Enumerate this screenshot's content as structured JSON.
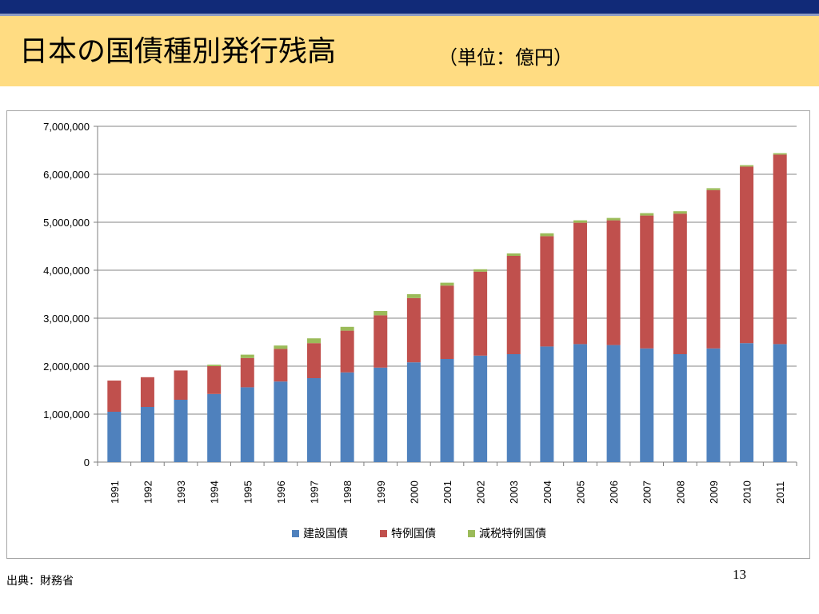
{
  "slide": {
    "title": "日本の国債種別発行残高",
    "unit_note": "（単位：億円）",
    "source": "出典：財務省",
    "page_number": "13",
    "colors": {
      "top_bar": "#112a78",
      "title_band": "#ffdc82"
    }
  },
  "chart_data": {
    "type": "bar",
    "stacked": true,
    "title": "",
    "xlabel": "",
    "ylabel": "",
    "ylim": [
      0,
      7000000
    ],
    "yticks": [
      0,
      1000000,
      2000000,
      3000000,
      4000000,
      5000000,
      6000000,
      7000000
    ],
    "ytick_labels": [
      "0",
      "1,000,000",
      "2,000,000",
      "3,000,000",
      "4,000,000",
      "5,000,000",
      "6,000,000",
      "7,000,000"
    ],
    "grid": true,
    "legend_position": "bottom",
    "categories": [
      "1991",
      "1992",
      "1993",
      "1994",
      "1995",
      "1996",
      "1997",
      "1998",
      "1999",
      "2000",
      "2001",
      "2002",
      "2003",
      "2004",
      "2005",
      "2006",
      "2007",
      "2008",
      "2009",
      "2010",
      "2011"
    ],
    "series": [
      {
        "name": "建設国債",
        "color": "#4f81bd",
        "values": [
          1050000,
          1150000,
          1300000,
          1420000,
          1560000,
          1680000,
          1750000,
          1870000,
          1970000,
          2080000,
          2150000,
          2220000,
          2250000,
          2410000,
          2460000,
          2440000,
          2370000,
          2250000,
          2370000,
          2480000,
          2460000
        ]
      },
      {
        "name": "特例国債",
        "color": "#c0504d",
        "values": [
          650000,
          620000,
          610000,
          580000,
          610000,
          680000,
          730000,
          870000,
          1090000,
          1340000,
          1530000,
          1750000,
          2050000,
          2300000,
          2530000,
          2600000,
          2770000,
          2930000,
          3300000,
          3680000,
          3950000
        ]
      },
      {
        "name": "減税特例国債",
        "color": "#9bbb59",
        "values": [
          0,
          0,
          0,
          30000,
          70000,
          70000,
          100000,
          80000,
          90000,
          80000,
          60000,
          50000,
          50000,
          60000,
          50000,
          50000,
          50000,
          50000,
          40000,
          30000,
          30000
        ]
      }
    ]
  }
}
